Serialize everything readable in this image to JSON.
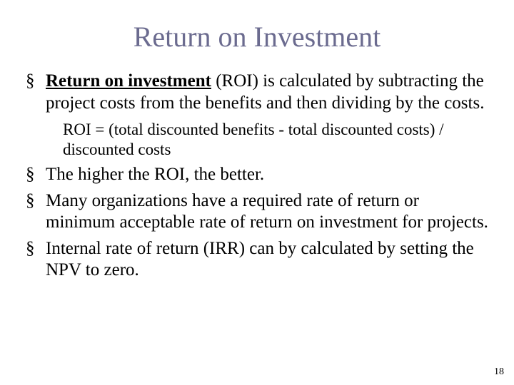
{
  "title_color": "#6b6b8f",
  "text_color": "#000000",
  "background_color": "#ffffff",
  "title": "Return on Investment",
  "page_number": "18",
  "bullets": [
    {
      "bold_underline": "Return on investment",
      "rest": " (ROI) is calculated by subtracting the project costs from the benefits and then dividing by the costs.",
      "sub": "ROI = (total discounted benefits - total discounted costs) / discounted costs"
    },
    {
      "text": "The higher the ROI, the better."
    },
    {
      "text": "Many organizations have a required rate of return or minimum acceptable rate of return on investment for projects."
    },
    {
      "text": "Internal rate of return (IRR) can by calculated by setting the NPV to zero."
    }
  ]
}
